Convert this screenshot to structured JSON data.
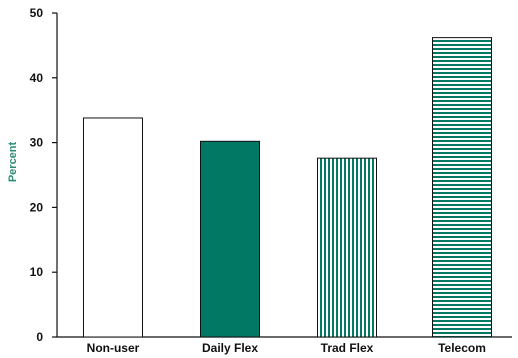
{
  "chart_data": {
    "type": "bar",
    "title": "",
    "xlabel": "",
    "ylabel": "Percent",
    "ylim": [
      0,
      50
    ],
    "yticks": [
      0,
      10,
      20,
      30,
      40,
      50
    ],
    "grid": false,
    "categories": [
      "Non-user",
      "Daily Flex",
      "Trad Flex",
      "Telecom"
    ],
    "values": [
      33.8,
      30.2,
      27.6,
      46.2
    ],
    "fills": [
      "none",
      "solid",
      "vertical-stripes",
      "horizontal-stripes"
    ],
    "colors": {
      "accent": "#007864",
      "axis": "#111111",
      "outline": "#111111",
      "ylabel": "#2e8b7a"
    }
  }
}
